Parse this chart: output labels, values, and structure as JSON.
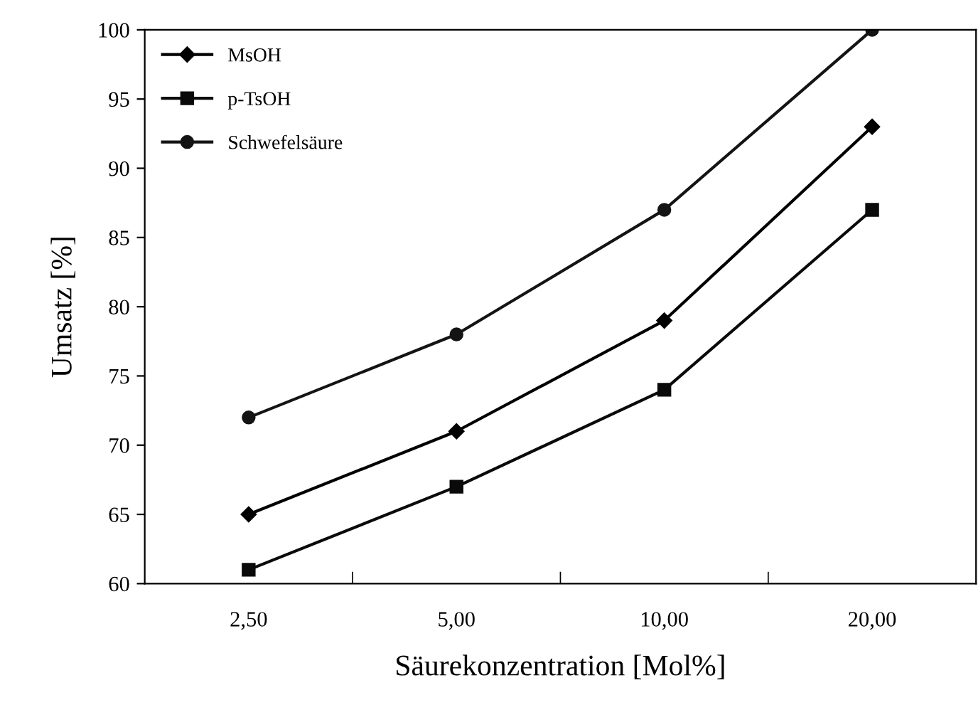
{
  "chart_data": {
    "type": "line",
    "xlabel": "Säurekonzentration [Mol%]",
    "ylabel": "Umsatz [%]",
    "categories": [
      "2,50",
      "5,00",
      "10,00",
      "20,00"
    ],
    "series": [
      {
        "name": "MsOH",
        "color": "#000000",
        "marker": "diamond",
        "values": [
          65,
          71,
          79,
          93
        ]
      },
      {
        "name": "p-TsOH",
        "color": "#0a0a0a",
        "marker": "square",
        "values": [
          61,
          67,
          74,
          87
        ]
      },
      {
        "name": "Schwefelsäure",
        "color": "#141414",
        "marker": "circle",
        "values": [
          72,
          78,
          87,
          100
        ]
      }
    ],
    "ylim": [
      60,
      100
    ],
    "yticks": [
      60,
      65,
      70,
      75,
      80,
      85,
      90,
      95,
      100
    ],
    "grid": false,
    "legend": "top left",
    "line_style": "solid"
  }
}
